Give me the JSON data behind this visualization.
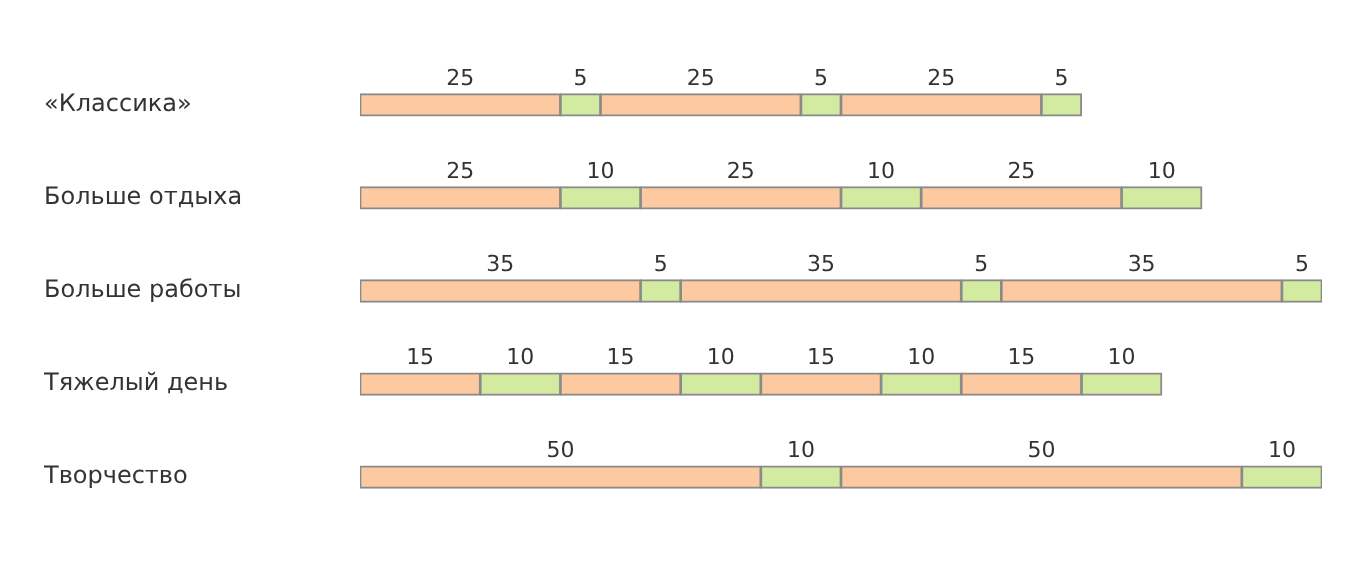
{
  "chart_data": {
    "type": "bar",
    "orientation": "horizontal",
    "stacked": true,
    "data_labels": true,
    "legend": false,
    "categories": [
      "«Классика»",
      "Больше отдыха",
      "Больше работы",
      "Тяжелый день",
      "Творчество"
    ],
    "series": [
      {
        "color": "#fcc9a0",
        "values": [
          25,
          25,
          35,
          15,
          50
        ]
      },
      {
        "color": "#d3eaa1",
        "values": [
          5,
          10,
          5,
          10,
          10
        ]
      },
      {
        "color": "#fcc9a0",
        "values": [
          25,
          25,
          35,
          15,
          50
        ]
      },
      {
        "color": "#d3eaa1",
        "values": [
          5,
          10,
          5,
          10,
          10
        ]
      },
      {
        "color": "#fcc9a0",
        "values": [
          25,
          25,
          35,
          15,
          null
        ]
      },
      {
        "color": "#d3eaa1",
        "values": [
          5,
          10,
          5,
          10,
          null
        ]
      },
      {
        "color": "#fcc9a0",
        "values": [
          null,
          null,
          null,
          15,
          null
        ]
      },
      {
        "color": "#d3eaa1",
        "values": [
          null,
          null,
          null,
          10,
          null
        ]
      }
    ]
  }
}
